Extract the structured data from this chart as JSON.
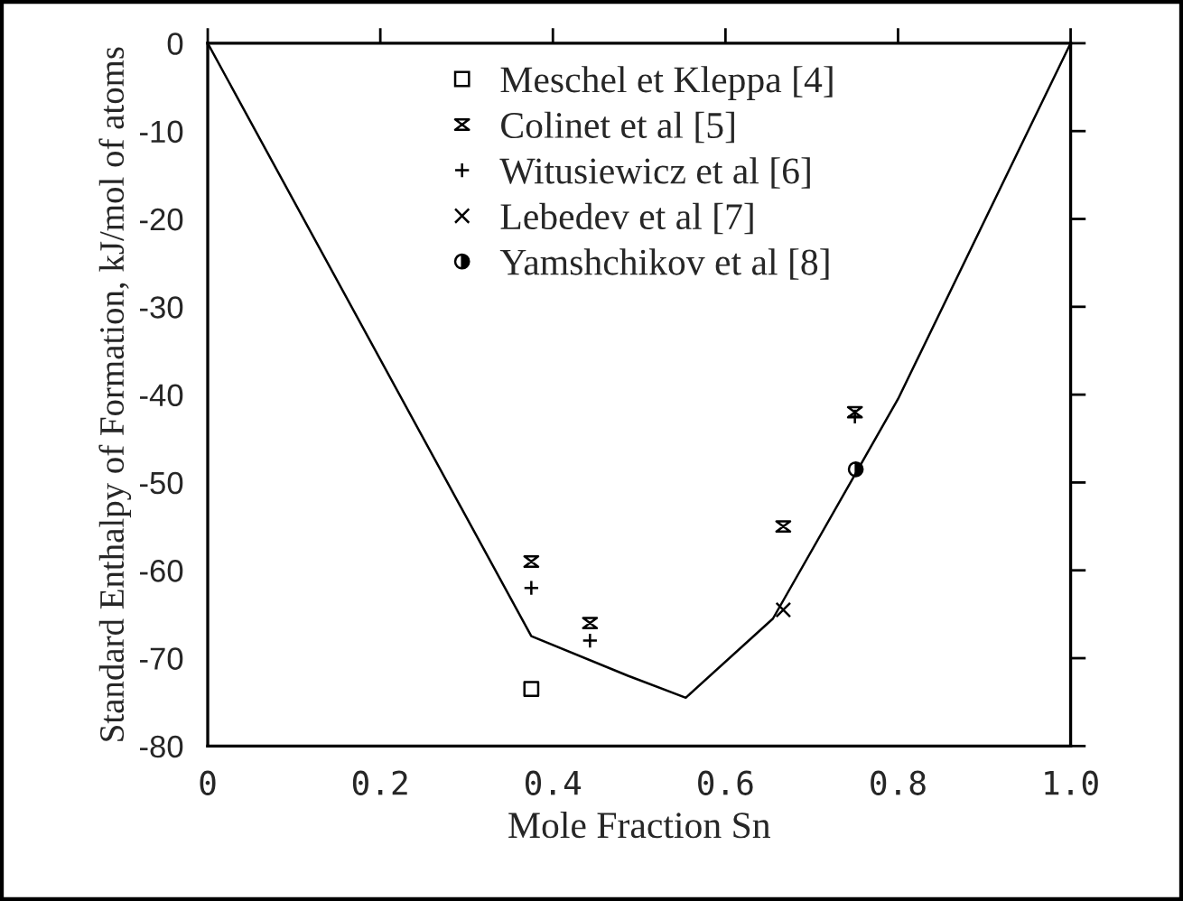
{
  "chart_data": {
    "type": "scatter",
    "xlabel": "Mole Fraction Sn",
    "ylabel": "Standard Enthalpy of Formation, kJ/mol of atoms",
    "xlim": [
      0,
      1
    ],
    "ylim": [
      -80,
      0
    ],
    "xticks": [
      0,
      0.2,
      0.4,
      0.6,
      0.8,
      {
        "value": 1,
        "label": "1.0"
      }
    ],
    "yticks": [
      -80,
      -70,
      -60,
      -50,
      -40,
      -30,
      -20,
      -10,
      0
    ],
    "grid": false,
    "legend": "top",
    "series": [
      {
        "type": "line",
        "color": "#000000",
        "marker": "none",
        "x": [
          0,
          0.375,
          0.487,
          0.554,
          0.655,
          0.8,
          1
        ],
        "values": [
          0,
          -67.5,
          -72,
          -74.5,
          -65.5,
          -40.5,
          0
        ]
      },
      {
        "name": "Meschel et Kleppa [4]",
        "color": "#000000",
        "marker": "square",
        "x": [
          0.375
        ],
        "values": [
          -73.5
        ]
      },
      {
        "name": "Colinet et al [5]",
        "color": "#000000",
        "x": [
          0.375,
          0.443,
          0.667,
          0.75
        ],
        "values": [
          -59,
          -66,
          -55,
          -42
        ]
      },
      {
        "name": "Witusiewicz et al [6]",
        "color": "#000000",
        "marker": "plus",
        "x": [
          0.375,
          0.443,
          0.75
        ],
        "values": [
          -62,
          -68,
          -42.5
        ]
      },
      {
        "name": "Lebedev et al [7]",
        "color": "#000000",
        "marker": "x",
        "x": [
          0.667
        ],
        "values": [
          -64.5
        ]
      },
      {
        "name": "Yamshchikov et al [8]",
        "color": "#000000",
        "marker": "half_circle",
        "x": [
          0.751
        ],
        "values": [
          -48.5
        ]
      }
    ]
  }
}
